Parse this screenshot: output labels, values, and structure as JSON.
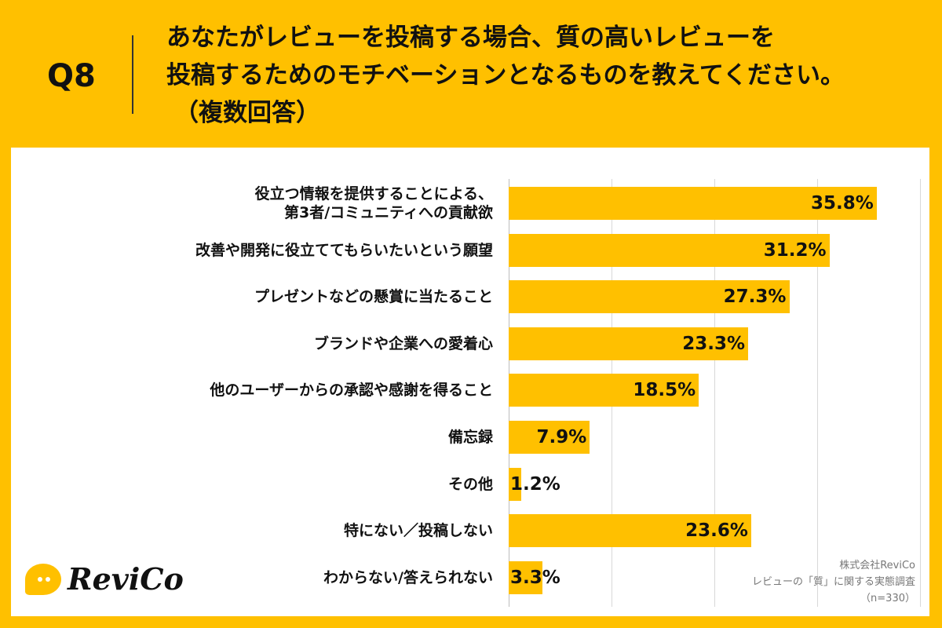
{
  "header": {
    "question_no": "Q8",
    "title_line1": "あなたがレビューを投稿する場合、質の高いレビューを",
    "title_line2": "投稿するためのモチベーションとなるものを教えてください。",
    "title_line3": "（複数回答）"
  },
  "chart_data": {
    "type": "bar",
    "orientation": "horizontal",
    "title": "あなたがレビューを投稿する場合、質の高いレビューを投稿するためのモチベーションとなるものを教えてください。（複数回答）",
    "categories": [
      "役立つ情報を提供することによる、\n第3者/コミュニティへの貢献欲",
      "改善や開発に役立ててもらいたいという願望",
      "プレゼントなどの懸賞に当たること",
      "ブランドや企業への愛着心",
      "他のユーザーからの承認や感謝を得ること",
      "備忘録",
      "その他",
      "特にない／投稿しない",
      "わからない/答えられない"
    ],
    "values": [
      35.8,
      31.2,
      27.3,
      23.3,
      18.5,
      7.9,
      1.2,
      23.6,
      3.3
    ],
    "value_labels": [
      "35.8%",
      "31.2%",
      "27.3%",
      "23.3%",
      "18.5%",
      "7.9%",
      "1.2%",
      "23.6%",
      "3.3%"
    ],
    "xlim": [
      0,
      40
    ],
    "unit": "%",
    "bar_color": "#FFC000",
    "grid": true
  },
  "brand": {
    "logo_text": "ReviCo",
    "accent_color": "#FFC000"
  },
  "source": {
    "company": "株式会社ReviCo",
    "survey": "レビューの「質」に関する実態調査",
    "sample": "（n=330）"
  }
}
